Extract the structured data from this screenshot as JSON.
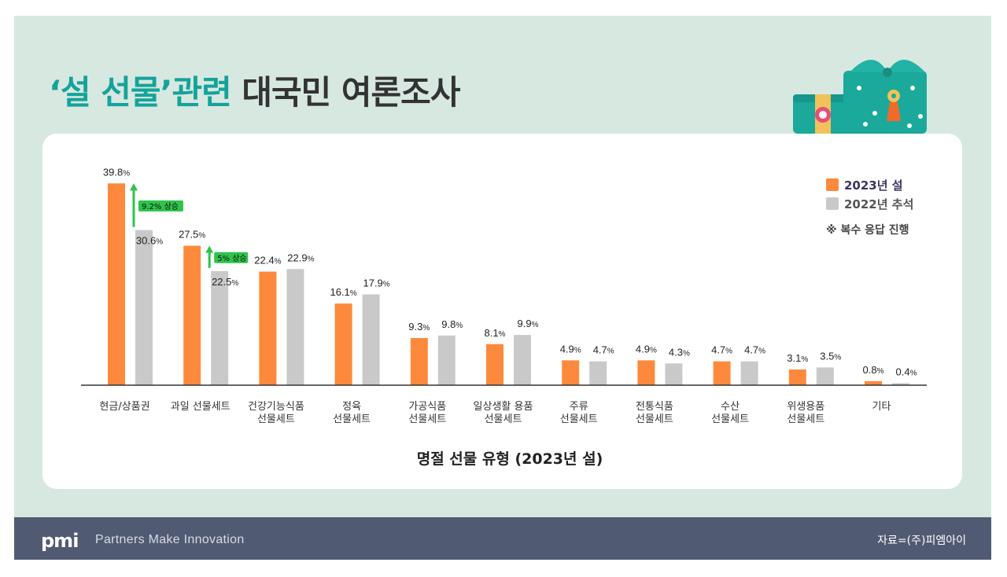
{
  "title": {
    "part1": "‘설 선물’관련",
    "part2": "대국민 여론조사"
  },
  "legend": {
    "series1": "2023년 설",
    "series2": "2022년 추석",
    "note": "※ 복수 응답 진행"
  },
  "footer": {
    "logo": "pmi",
    "tagline": "Partners Make Innovation",
    "source": "자료=(주)피엠아이"
  },
  "colors": {
    "series1": "#fd8a3c",
    "series2": "#c9c9c9",
    "accent": "#14a39a",
    "highlight": "#2ec44b"
  },
  "chart_data": {
    "type": "bar",
    "xlabel": "명절 선물 유형 (2023년 설)",
    "categories": [
      [
        "현금/상품권"
      ],
      [
        "과일 선물세트"
      ],
      [
        "건강기능식품",
        "선물세트"
      ],
      [
        "정육",
        "선물세트"
      ],
      [
        "가공식품",
        "선물세트"
      ],
      [
        "일상생활 용품",
        "선물세트"
      ],
      [
        "주류",
        "선물세트"
      ],
      [
        "전통식품",
        "선물세트"
      ],
      [
        "수산",
        "선물세트"
      ],
      [
        "위생용품",
        "선물세트"
      ],
      [
        "기타"
      ]
    ],
    "series": [
      {
        "name": "2023년 설",
        "values": [
          39.8,
          27.5,
          22.4,
          16.1,
          9.3,
          8.1,
          4.9,
          4.9,
          4.7,
          3.1,
          0.8
        ]
      },
      {
        "name": "2022년 추석",
        "values": [
          30.6,
          22.5,
          22.9,
          17.9,
          9.8,
          9.9,
          4.7,
          4.3,
          4.7,
          3.5,
          0.4
        ]
      }
    ],
    "value_suffix": "%",
    "annotations": [
      {
        "category_index": 0,
        "text": "9.2% 상승"
      },
      {
        "category_index": 1,
        "text": "5% 상승"
      }
    ],
    "ylim": [
      0,
      42
    ]
  }
}
